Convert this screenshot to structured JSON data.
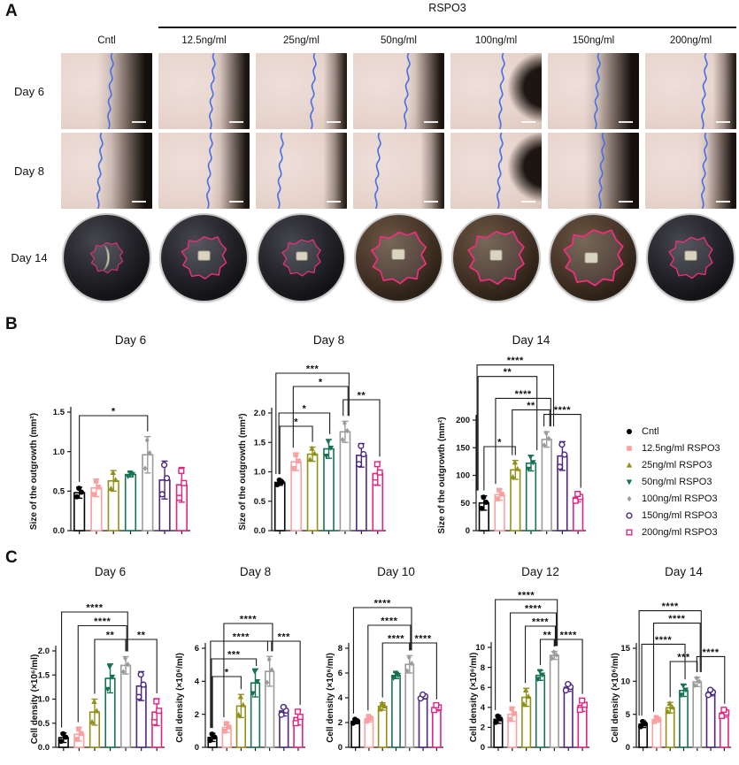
{
  "panelA": {
    "label": "A",
    "group_header": "RSPO3",
    "columns": [
      "Cntl",
      "12.5ng/ml",
      "25ng/ml",
      "50ng/ml",
      "100ng/ml",
      "150ng/ml",
      "200ng/ml"
    ],
    "rows": [
      "Day 6",
      "Day 8",
      "Day 14"
    ]
  },
  "panelB": {
    "label": "B"
  },
  "panelC": {
    "label": "C"
  },
  "legend": {
    "items": [
      {
        "label": "Cntl"
      },
      {
        "label": "12.5ng/ml RSPO3"
      },
      {
        "label": "25ng/ml RSPO3"
      },
      {
        "label": "50ng/ml RSPO3"
      },
      {
        "label": "100ng/ml RSPO3"
      },
      {
        "label": "150ng/ml RSPO3"
      },
      {
        "label": "200ng/ml RSPO3"
      }
    ]
  },
  "style": {
    "colors": [
      "#000000",
      "#F9A0A0",
      "#91911A",
      "#177253",
      "#9B9B9B",
      "#4B2683",
      "#E2247F"
    ],
    "markers": [
      "circle-filled",
      "square-filled",
      "triangle-up",
      "triangle-down",
      "diamond",
      "circle-open",
      "square-open"
    ],
    "axis_color": "#1a1a1a",
    "significance_color": "#1a1a1a",
    "outline_pink": "#ee2f7d",
    "trace_blue": "#4a6fe3"
  },
  "chart_data": [
    {
      "id": "b_day6",
      "type": "bar",
      "title": "Day 6",
      "ylabel": "Size of the outgrowth (mm²)",
      "ymax": 1.5,
      "yticks": [
        "0.0",
        "0.5",
        "1.0",
        "1.5"
      ],
      "categories": [
        "Cntl",
        "12.5ng/ml RSPO3",
        "25ng/ml RSPO3",
        "50ng/ml RSPO3",
        "100ng/ml RSPO3",
        "150ng/ml RSPO3",
        "200ng/ml RSPO3"
      ],
      "values": [
        0.48,
        0.54,
        0.63,
        0.71,
        0.96,
        0.64,
        0.58
      ],
      "errors": [
        0.07,
        0.11,
        0.13,
        0.03,
        0.23,
        0.24,
        0.22
      ],
      "significance": [
        {
          "a": 0,
          "b": 4,
          "stars": "*",
          "lvl": 0
        }
      ]
    },
    {
      "id": "b_day8",
      "type": "bar",
      "title": "Day 8",
      "ylabel": "Size of the outgrowth (mm²)",
      "ymax": 2.0,
      "yticks": [
        "0.0",
        "0.5",
        "1.0",
        "1.5",
        "2.0"
      ],
      "categories": [
        "Cntl",
        "12.5ng/ml RSPO3",
        "25ng/ml RSPO3",
        "50ng/ml RSPO3",
        "100ng/ml RSPO3",
        "150ng/ml RSPO3",
        "200ng/ml RSPO3"
      ],
      "values": [
        0.82,
        1.17,
        1.3,
        1.39,
        1.68,
        1.28,
        0.97
      ],
      "errors": [
        0.05,
        0.15,
        0.12,
        0.16,
        0.18,
        0.2,
        0.2
      ],
      "significance": [
        {
          "a": 0,
          "b": 2,
          "stars": "*",
          "lvl": 0
        },
        {
          "a": 0,
          "b": 3,
          "stars": "*",
          "lvl": 1
        },
        {
          "a": 4,
          "b": 6,
          "stars": "**",
          "lvl": 2
        },
        {
          "a": 1,
          "b": 4,
          "stars": "*",
          "lvl": 3
        },
        {
          "a": 0,
          "b": 4,
          "stars": "***",
          "lvl": 4
        }
      ]
    },
    {
      "id": "b_day14",
      "type": "bar",
      "title": "Day 14",
      "ylabel": "Size of the outgrowth (mm²)",
      "ymax": 200,
      "yticks": [
        "0",
        "50",
        "100",
        "150",
        "200"
      ],
      "categories": [
        "Cntl",
        "12.5ng/ml RSPO3",
        "25ng/ml RSPO3",
        "50ng/ml RSPO3",
        "100ng/ml RSPO3",
        "150ng/ml RSPO3",
        "200ng/ml RSPO3"
      ],
      "values": [
        50,
        65,
        110,
        122,
        165,
        135,
        60
      ],
      "errors": [
        13,
        10,
        17,
        14,
        14,
        26,
        8
      ],
      "significance": [
        {
          "a": 0,
          "b": 2,
          "stars": "*",
          "lvl": 0
        },
        {
          "a": 4,
          "b": 6,
          "stars": "****",
          "lvl": 2.8
        },
        {
          "a": 2,
          "b": 4,
          "stars": "**",
          "lvl": 3.2
        },
        {
          "a": 1,
          "b": 4,
          "stars": "****",
          "lvl": 4.2
        },
        {
          "a": 0,
          "b": 3,
          "stars": "**",
          "lvl": 6.1
        },
        {
          "a": 0,
          "b": 4,
          "stars": "****",
          "lvl": 7.1
        }
      ]
    },
    {
      "id": "c_day6",
      "type": "bar",
      "title": "Day 6",
      "ylabel": "Cell density (×10⁶/ml)",
      "ymax": 2.0,
      "yticks": [
        "0.0",
        "0.5",
        "1.0",
        "1.5",
        "2.0"
      ],
      "categories": [
        "Cntl",
        "12.5ng/ml RSPO3",
        "25ng/ml RSPO3",
        "50ng/ml RSPO3",
        "100ng/ml RSPO3",
        "150ng/ml RSPO3",
        "200ng/ml RSPO3"
      ],
      "values": [
        0.2,
        0.27,
        0.73,
        1.43,
        1.7,
        1.27,
        0.73
      ],
      "errors": [
        0.1,
        0.14,
        0.27,
        0.3,
        0.18,
        0.3,
        0.28
      ],
      "significance": [
        {
          "a": 2,
          "b": 4,
          "stars": "**",
          "lvl": 0
        },
        {
          "a": 4,
          "b": 6,
          "stars": "**",
          "lvl": 0
        },
        {
          "a": 1,
          "b": 4,
          "stars": "****",
          "lvl": 1
        },
        {
          "a": 0,
          "b": 4,
          "stars": "****",
          "lvl": 2
        }
      ]
    },
    {
      "id": "c_day8",
      "type": "bar",
      "title": "Day 8",
      "ylabel": "Cell density (×10⁶/ml)",
      "ymax": 6,
      "yticks": [
        "0",
        "2",
        "4",
        "6"
      ],
      "categories": [
        "Cntl",
        "12.5ng/ml RSPO3",
        "25ng/ml RSPO3",
        "50ng/ml RSPO3",
        "100ng/ml RSPO3",
        "150ng/ml RSPO3",
        "200ng/ml RSPO3"
      ],
      "values": [
        0.6,
        1.2,
        2.5,
        3.9,
        4.6,
        2.2,
        1.8
      ],
      "errors": [
        0.25,
        0.3,
        0.7,
        0.85,
        0.9,
        0.3,
        0.45
      ],
      "significance": [
        {
          "a": 0,
          "b": 2,
          "stars": "*",
          "lvl": 0
        },
        {
          "a": 0,
          "b": 3,
          "stars": "***",
          "lvl": 1
        },
        {
          "a": 0,
          "b": 4,
          "stars": "****",
          "lvl": 2
        },
        {
          "a": 4,
          "b": 6,
          "stars": "***",
          "lvl": 2
        },
        {
          "a": 1,
          "b": 4,
          "stars": "****",
          "lvl": 3
        }
      ]
    },
    {
      "id": "c_day10",
      "type": "bar",
      "title": "Day 10",
      "ylabel": "Cell density (×10⁶/ml)",
      "ymax": 8,
      "yticks": [
        "0",
        "2",
        "4",
        "6",
        "8"
      ],
      "categories": [
        "Cntl",
        "12.5ng/ml RSPO3",
        "25ng/ml RSPO3",
        "50ng/ml RSPO3",
        "100ng/ml RSPO3",
        "150ng/ml RSPO3",
        "200ng/ml RSPO3"
      ],
      "values": [
        2.1,
        2.3,
        3.3,
        5.8,
        6.7,
        4.1,
        3.2
      ],
      "errors": [
        0.2,
        0.25,
        0.3,
        0.25,
        0.7,
        0.2,
        0.25
      ],
      "significance": [
        {
          "a": 2,
          "b": 4,
          "stars": "****",
          "lvl": 0
        },
        {
          "a": 4,
          "b": 6,
          "stars": "****",
          "lvl": 0
        },
        {
          "a": 1,
          "b": 4,
          "stars": "****",
          "lvl": 1
        },
        {
          "a": 0,
          "b": 4,
          "stars": "****",
          "lvl": 2
        }
      ]
    },
    {
      "id": "c_day12",
      "type": "bar",
      "title": "Day 12",
      "ylabel": "Cell density (×10⁶/ml)",
      "ymax": 10,
      "yticks": [
        "0",
        "2",
        "4",
        "6",
        "8",
        "10"
      ],
      "categories": [
        "Cntl",
        "12.5ng/ml RSPO3",
        "25ng/ml RSPO3",
        "50ng/ml RSPO3",
        "100ng/ml RSPO3",
        "150ng/ml RSPO3",
        "200ng/ml RSPO3"
      ],
      "values": [
        2.8,
        3.3,
        5.0,
        7.2,
        9.2,
        6.0,
        4.2
      ],
      "errors": [
        0.4,
        0.7,
        0.9,
        0.5,
        0.4,
        0.4,
        0.6
      ],
      "significance": [
        {
          "a": 3,
          "b": 4,
          "stars": "**",
          "lvl": 0
        },
        {
          "a": 4,
          "b": 6,
          "stars": "****",
          "lvl": 0
        },
        {
          "a": 2,
          "b": 4,
          "stars": "****",
          "lvl": 1
        },
        {
          "a": 1,
          "b": 4,
          "stars": "****",
          "lvl": 2
        },
        {
          "a": 0,
          "b": 4,
          "stars": "****",
          "lvl": 3
        }
      ]
    },
    {
      "id": "c_day14",
      "type": "bar",
      "title": "Day 14",
      "ylabel": "Cell density (×10⁶/ml)",
      "ymax": 15,
      "yticks": [
        "0",
        "5",
        "10",
        "15"
      ],
      "categories": [
        "Cntl",
        "12.5ng/ml RSPO3",
        "25ng/ml RSPO3",
        "50ng/ml RSPO3",
        "100ng/ml RSPO3",
        "150ng/ml RSPO3",
        "200ng/ml RSPO3"
      ],
      "values": [
        3.5,
        4.2,
        6.0,
        8.6,
        9.9,
        8.3,
        5.2
      ],
      "errors": [
        0.5,
        0.4,
        0.8,
        0.9,
        0.7,
        0.5,
        0.6
      ],
      "significance": [
        {
          "a": 2,
          "b": 4,
          "stars": "***",
          "lvl": 0
        },
        {
          "a": 4,
          "b": 6,
          "stars": "****",
          "lvl": 0.4
        },
        {
          "a": 0,
          "b": 3,
          "stars": "****",
          "lvl": 1.4
        },
        {
          "a": 1,
          "b": 4,
          "stars": "****",
          "lvl": 3.1
        },
        {
          "a": 0,
          "b": 4,
          "stars": "****",
          "lvl": 4.1
        }
      ]
    }
  ]
}
